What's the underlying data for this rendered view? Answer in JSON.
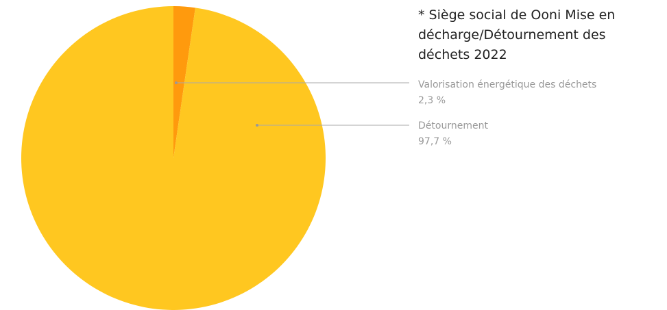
{
  "chart_data": {
    "type": "pie",
    "title": "* Siège social de Ooni Mise en décharge/Détournement des déchets 2022",
    "categories": [
      "Valorisation énergétique des déchets",
      "Détournement"
    ],
    "values": [
      2.3,
      97.7
    ],
    "value_labels": [
      "2,3 %",
      "97,7 %"
    ],
    "colors": [
      "#ff9a0d",
      "#ffc720"
    ]
  }
}
